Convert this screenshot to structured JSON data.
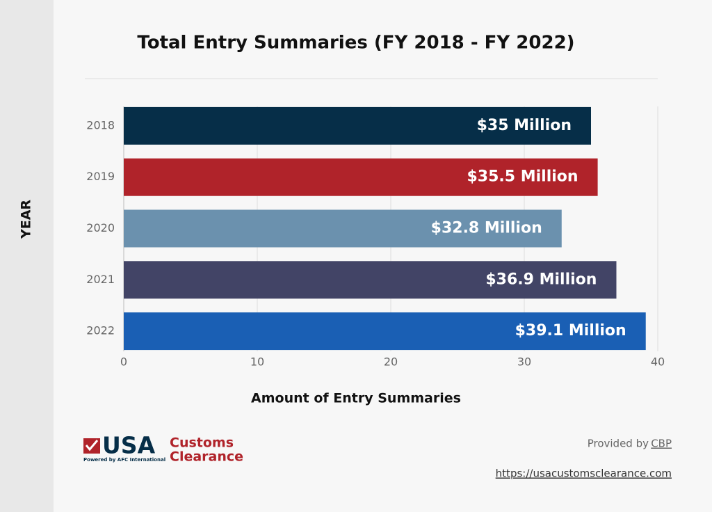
{
  "chart_data": {
    "type": "bar",
    "orientation": "horizontal",
    "title": "Total Entry Summaries (FY 2018 - FY 2022)",
    "x_label": "Amount of Entry Summaries",
    "y_label": "YEAR",
    "categories": [
      "2018",
      "2019",
      "2020",
      "2021",
      "2022"
    ],
    "values": [
      35,
      35.5,
      32.8,
      36.9,
      39.1
    ],
    "value_labels": [
      "$35 Million",
      "$35.5 Million",
      "$32.8 Million",
      "$36.9 Million",
      "$39.1 Million"
    ],
    "colors": [
      "#062e48",
      "#b0232a",
      "#6b91ae",
      "#424466",
      "#1a5fb4"
    ],
    "xlim": [
      0,
      40
    ],
    "xticks": [
      0,
      10,
      20,
      30,
      40
    ],
    "grid": true
  },
  "footer": {
    "logo_main": "USA",
    "logo_line1": "Customs",
    "logo_line2": "Clearance",
    "logo_tagline": "Powered by AFC International",
    "provided_by": "Provided by",
    "source": "CBP",
    "url": "https://usacustomsclearance.com"
  }
}
